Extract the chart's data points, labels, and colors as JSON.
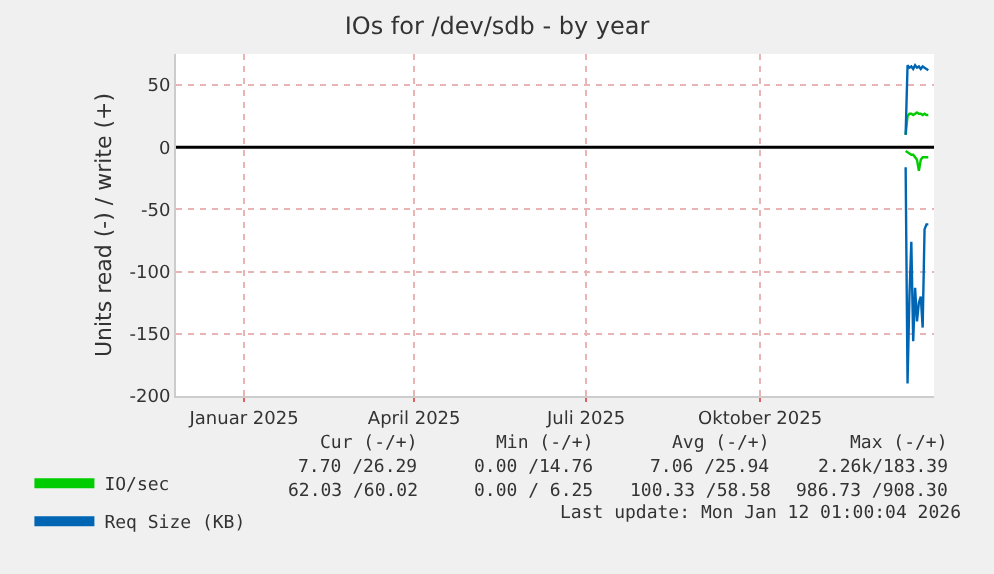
{
  "chart_data": {
    "type": "line",
    "title": "IOs for /dev/sdb - by year",
    "ylabel": "Units read (-) / write (+)",
    "x": [
      "2025-12-17",
      "2025-12-18",
      "2025-12-19",
      "2025-12-20",
      "2025-12-21",
      "2025-12-22",
      "2025-12-23",
      "2025-12-24",
      "2025-12-25",
      "2025-12-26",
      "2025-12-27",
      "2025-12-28",
      "2025-12-29"
    ],
    "series": [
      {
        "name": "IO/sec",
        "color": "#00cc00",
        "values": [
          10,
          25,
          27,
          27,
          26,
          27,
          28,
          27,
          27,
          26,
          27,
          26,
          26
        ]
      },
      {
        "name": "Req Size (KB)",
        "color": "#0066b3",
        "values": [
          10,
          66,
          64,
          65,
          63,
          66,
          64,
          65,
          63,
          65,
          64,
          63,
          62
        ]
      },
      {
        "color": "#00cc00",
        "values": [
          -3,
          -4,
          -5,
          -6,
          -6,
          -8,
          -10,
          -19,
          -10,
          -8,
          -8,
          -8,
          -8
        ]
      },
      {
        "color": "#0066b3",
        "values": [
          -16,
          -190,
          -120,
          -76,
          -156,
          -113,
          -140,
          -125,
          -120,
          -145,
          -66,
          -62,
          -62
        ]
      }
    ],
    "xlim": [
      "2024-11-26",
      "2026-01-01"
    ],
    "xticks": [
      {
        "value": "2025-01-01",
        "label": "Januar 2025"
      },
      {
        "value": "2025-04-01",
        "label": "April 2025"
      },
      {
        "value": "2025-07-01",
        "label": "Juli 2025"
      },
      {
        "value": "2025-10-01",
        "label": "Oktober 2025"
      }
    ],
    "ylim": [
      -200,
      75
    ],
    "yticks": [
      -200,
      -150,
      -100,
      -50,
      0,
      50
    ],
    "ref_lines": [
      {
        "axis": "y",
        "value": 0,
        "color": "#000000"
      }
    ],
    "grid": true,
    "legend": "bottom left",
    "annotations": [
      "Cur (-/+)",
      "Min (-/+)",
      "Avg (-/+)",
      "Max (-/+)",
      "7.70 /26.29",
      "0.00 /14.76",
      "7.06 /25.94",
      "2.26k/183.39",
      "62.03 /60.02",
      "0.00 / 6.25",
      "100.33 /58.58",
      "986.73 /908.30",
      "Last update: Mon Jan 12 01:00:04 2026"
    ]
  }
}
